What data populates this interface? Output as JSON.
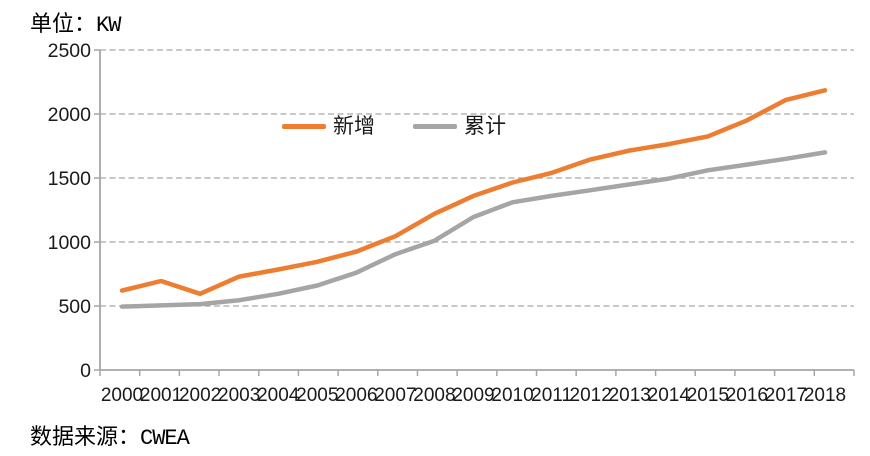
{
  "header": {
    "unit_label": "单位：",
    "unit_value": "KW"
  },
  "footer": {
    "source_label": "数据来源：",
    "source_value": "CWEA"
  },
  "chart_data": {
    "type": "line",
    "title": "",
    "unit": "KW",
    "categories": [
      2000,
      2001,
      2002,
      2003,
      2004,
      2005,
      2006,
      2007,
      2008,
      2009,
      2010,
      2011,
      2012,
      2013,
      2014,
      2015,
      2016,
      2017,
      2018
    ],
    "series": [
      {
        "name": "新增",
        "color": "#ED7D31",
        "values": [
          620,
          695,
          595,
          730,
          785,
          845,
          925,
          1045,
          1220,
          1360,
          1465,
          1540,
          1645,
          1715,
          1765,
          1825,
          1950,
          2110,
          2185
        ]
      },
      {
        "name": "累计",
        "color": "#A5A5A5",
        "values": [
          495,
          505,
          515,
          545,
          595,
          660,
          760,
          905,
          1010,
          1195,
          1310,
          1360,
          1405,
          1450,
          1495,
          1560,
          1605,
          1650,
          1700
        ]
      }
    ],
    "ylim": [
      0,
      2500
    ],
    "ytick_interval": 500,
    "grid": "dashed-horizontal-gridlines",
    "legend_position": "inside-top-center",
    "source": "CWEA"
  },
  "colors": {
    "axis": "#A6A6A6",
    "gridline": "#A6A6A6",
    "tick_label": "#1A1A1A",
    "text": "#000000",
    "background": "#FFFFFF"
  }
}
